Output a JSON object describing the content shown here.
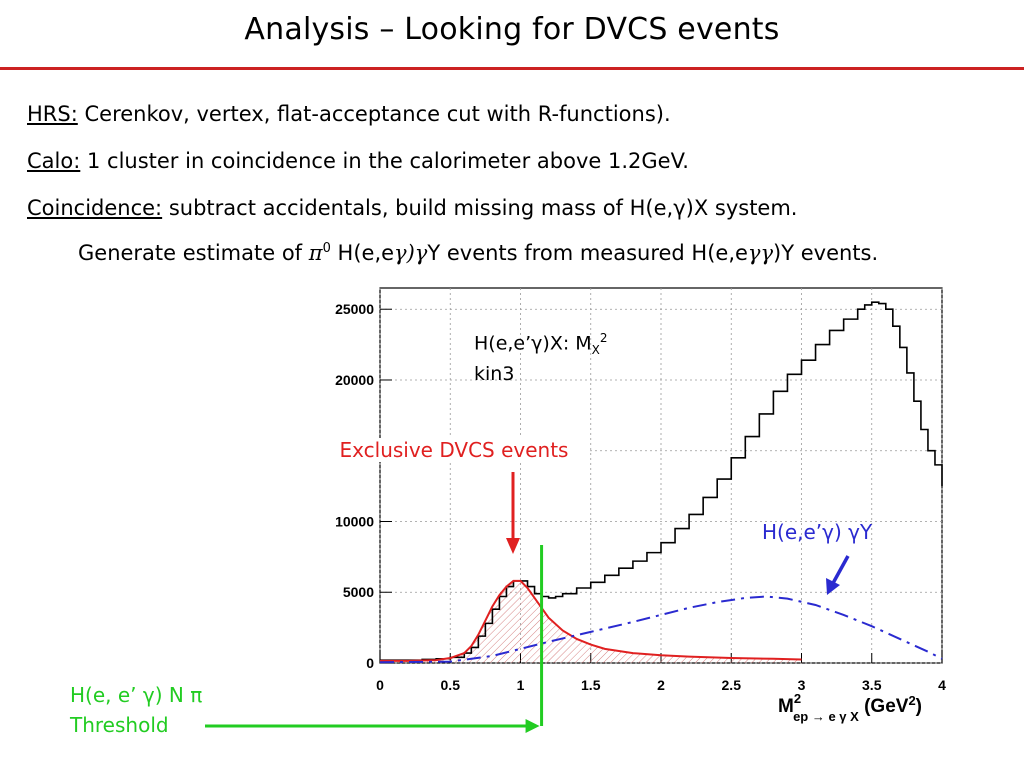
{
  "slide": {
    "title": "Analysis – Looking for DVCS events",
    "bullets": [
      {
        "label": "HRS:",
        "text": "Cerenkov, vertex, flat-acceptance cut with R-functions)."
      },
      {
        "label": "Calo:",
        "text": "1 cluster in coincidence in the calorimeter above 1.2GeV."
      },
      {
        "label": "Coincidence:",
        "text": "subtract accidentals, build missing mass of H(e,γ)X system."
      }
    ],
    "sub_line": "Generate estimate of π0 H(e,eγ)γY events from measured H(e,eγγ)Y events.",
    "sub_parts": {
      "a": "Generate estimate of ",
      "pi": "π",
      "sup": "0",
      "b": " H(e,e",
      "g1": "γ)γ",
      "c": "Y events from measured H(e,e",
      "g2": "γγ",
      "d": ")Y events."
    }
  },
  "annotations": {
    "plot_label_1": "H(e,e’γ)X:  M",
    "plot_label_sub": "X",
    "plot_label_sup": "2",
    "plot_label_2": "kin3",
    "exclusive": "Exclusive DVCS events",
    "pi0_label": "H(e,e’γ) γY",
    "threshold_1": "H(e, e’ γ) N π",
    "threshold_2": "Threshold"
  },
  "colors": {
    "title_rule": "#cc2222",
    "total": "#000000",
    "dvcs": "#e02020",
    "pi0": "#2a2ad0",
    "threshold": "#22cc22",
    "exclusive_text": "#e02020",
    "pi0_text": "#2a2ad0",
    "threshold_text": "#22cc22"
  },
  "chart_data": {
    "type": "line",
    "xlabel": "M²ep→eγX (GeV²)",
    "xlim": [
      0,
      4
    ],
    "ylim": [
      0,
      26500
    ],
    "x_ticks": [
      0,
      0.5,
      1,
      1.5,
      2,
      2.5,
      3,
      3.5,
      4
    ],
    "x_tick_labels": [
      "0",
      "0.5",
      "1",
      "1.5",
      "2",
      "2.5",
      "3",
      "3.5",
      "4"
    ],
    "y_ticks": [
      0,
      5000,
      10000,
      15000,
      20000,
      25000
    ],
    "y_tick_labels": [
      "0",
      "5000",
      "10000",
      "15000",
      "20000",
      "25000"
    ],
    "grid": true,
    "threshold_x": 1.15,
    "series": [
      {
        "name": "H(e,e’γ)X",
        "style": "step",
        "x": [
          0,
          0.1,
          0.2,
          0.3,
          0.4,
          0.5,
          0.6,
          0.65,
          0.7,
          0.75,
          0.8,
          0.85,
          0.9,
          0.95,
          1.0,
          1.05,
          1.1,
          1.15,
          1.2,
          1.25,
          1.3,
          1.4,
          1.5,
          1.6,
          1.7,
          1.8,
          1.9,
          2.0,
          2.1,
          2.2,
          2.3,
          2.4,
          2.5,
          2.6,
          2.7,
          2.8,
          2.9,
          3.0,
          3.1,
          3.2,
          3.3,
          3.4,
          3.45,
          3.5,
          3.55,
          3.6,
          3.65,
          3.7,
          3.75,
          3.8,
          3.85,
          3.9,
          3.95,
          4.0
        ],
        "values": [
          200,
          200,
          200,
          250,
          300,
          400,
          700,
          1100,
          1900,
          2800,
          3800,
          4700,
          5400,
          5800,
          5800,
          5400,
          4900,
          4700,
          4600,
          4700,
          4900,
          5300,
          5700,
          6200,
          6700,
          7200,
          7800,
          8500,
          9500,
          10500,
          11700,
          13000,
          14500,
          16000,
          17600,
          19200,
          20400,
          21400,
          22500,
          23500,
          24300,
          25000,
          25300,
          25500,
          25400,
          25000,
          23800,
          22300,
          20500,
          18500,
          16500,
          15000,
          14000,
          12500
        ]
      },
      {
        "name": "Exclusive DVCS events",
        "style": "line",
        "x": [
          0,
          0.2,
          0.4,
          0.5,
          0.6,
          0.65,
          0.7,
          0.75,
          0.8,
          0.85,
          0.9,
          0.95,
          1.0,
          1.05,
          1.1,
          1.15,
          1.2,
          1.3,
          1.4,
          1.5,
          1.6,
          1.8,
          2.0,
          2.2,
          2.5,
          2.8,
          3.0
        ],
        "values": [
          150,
          150,
          200,
          350,
          700,
          1200,
          2000,
          3000,
          4000,
          4800,
          5400,
          5800,
          5800,
          5300,
          4600,
          3900,
          3200,
          2300,
          1700,
          1300,
          1000,
          700,
          550,
          450,
          350,
          300,
          250
        ]
      },
      {
        "name": "H(e,e’γ) γY",
        "style": "dashed",
        "x": [
          0,
          0.5,
          0.8,
          1.0,
          1.2,
          1.5,
          1.8,
          2.0,
          2.2,
          2.4,
          2.6,
          2.75,
          2.9,
          3.1,
          3.3,
          3.5,
          3.7,
          3.9,
          4.0
        ],
        "values": [
          50,
          100,
          500,
          1000,
          1500,
          2200,
          2900,
          3400,
          3900,
          4300,
          4600,
          4700,
          4550,
          4100,
          3400,
          2600,
          1700,
          800,
          300
        ]
      }
    ]
  }
}
